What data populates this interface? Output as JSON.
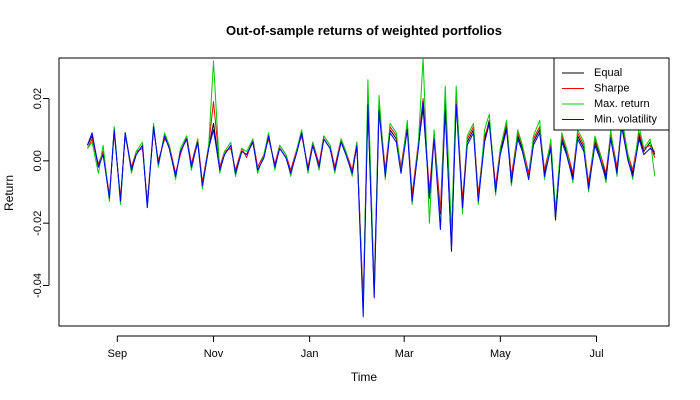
{
  "chart_data": {
    "type": "line",
    "title": "Out-of-sample returns of weighted portfolios",
    "xlabel": "Time",
    "ylabel": "Return",
    "x_ticks": [
      {
        "date": "2019-09-01",
        "label": "Sep"
      },
      {
        "date": "2019-11-01",
        "label": "Nov"
      },
      {
        "date": "2020-01-01",
        "label": "Jan"
      },
      {
        "date": "2020-03-01",
        "label": "Mar"
      },
      {
        "date": "2020-05-01",
        "label": "May"
      },
      {
        "date": "2020-07-01",
        "label": "Jul"
      }
    ],
    "y_ticks": [
      {
        "value": -0.04,
        "label": "-0.04"
      },
      {
        "value": -0.02,
        "label": "-0.02"
      },
      {
        "value": 0.0,
        "label": "0.00"
      },
      {
        "value": 0.02,
        "label": "0.02"
      }
    ],
    "xlim": [
      "2019-07-26",
      "2020-08-16"
    ],
    "ylim": [
      -0.053,
      0.033
    ],
    "grid": false,
    "legend_position": "top-right",
    "x": [
      "2019-08-13",
      "2019-08-16",
      "2019-08-20",
      "2019-08-23",
      "2019-08-27",
      "2019-08-30",
      "2019-09-03",
      "2019-09-06",
      "2019-09-10",
      "2019-09-13",
      "2019-09-17",
      "2019-09-20",
      "2019-09-24",
      "2019-09-27",
      "2019-10-01",
      "2019-10-04",
      "2019-10-08",
      "2019-10-11",
      "2019-10-15",
      "2019-10-18",
      "2019-10-22",
      "2019-10-25",
      "2019-10-29",
      "2019-11-01",
      "2019-11-05",
      "2019-11-08",
      "2019-11-12",
      "2019-11-15",
      "2019-11-19",
      "2019-11-22",
      "2019-11-26",
      "2019-11-29",
      "2019-12-03",
      "2019-12-06",
      "2019-12-10",
      "2019-12-13",
      "2019-12-17",
      "2019-12-20",
      "2019-12-24",
      "2019-12-27",
      "2019-12-31",
      "2020-01-03",
      "2020-01-07",
      "2020-01-10",
      "2020-01-14",
      "2020-01-17",
      "2020-01-21",
      "2020-01-24",
      "2020-01-28",
      "2020-01-31",
      "2020-02-04",
      "2020-02-07",
      "2020-02-11",
      "2020-02-14",
      "2020-02-18",
      "2020-02-21",
      "2020-02-25",
      "2020-02-28",
      "2020-03-03",
      "2020-03-06",
      "2020-03-10",
      "2020-03-13",
      "2020-03-17",
      "2020-03-20",
      "2020-03-24",
      "2020-03-27",
      "2020-03-31",
      "2020-04-03",
      "2020-04-07",
      "2020-04-10",
      "2020-04-14",
      "2020-04-17",
      "2020-04-21",
      "2020-04-24",
      "2020-04-28",
      "2020-05-01",
      "2020-05-05",
      "2020-05-08",
      "2020-05-12",
      "2020-05-15",
      "2020-05-19",
      "2020-05-22",
      "2020-05-26",
      "2020-05-29",
      "2020-06-02",
      "2020-06-05",
      "2020-06-09",
      "2020-06-12",
      "2020-06-16",
      "2020-06-19",
      "2020-06-23",
      "2020-06-26",
      "2020-06-30",
      "2020-07-03",
      "2020-07-07",
      "2020-07-10",
      "2020-07-14",
      "2020-07-17",
      "2020-07-21",
      "2020-07-24",
      "2020-07-28",
      "2020-07-31",
      "2020-08-04",
      "2020-08-07"
    ],
    "series": [
      {
        "name": "Equal",
        "color": "#000000",
        "values": [
          0.005,
          0.008,
          -0.002,
          0.003,
          -0.012,
          0.01,
          -0.013,
          0.009,
          -0.003,
          0.002,
          0.005,
          -0.014,
          0.011,
          -0.001,
          0.008,
          0.004,
          -0.005,
          0.003,
          0.007,
          -0.002,
          0.006,
          -0.008,
          0.004,
          0.012,
          -0.003,
          0.002,
          0.005,
          -0.004,
          0.003,
          0.002,
          0.006,
          -0.003,
          0.001,
          0.008,
          -0.002,
          0.004,
          0.001,
          -0.004,
          0.003,
          0.009,
          -0.003,
          0.005,
          -0.002,
          0.007,
          0.004,
          -0.003,
          0.006,
          0.002,
          -0.004,
          0.005,
          -0.046,
          0.018,
          -0.043,
          0.017,
          -0.004,
          0.01,
          0.007,
          -0.003,
          0.011,
          -0.012,
          0.005,
          0.017,
          -0.011,
          0.008,
          -0.017,
          0.018,
          -0.029,
          0.02,
          -0.014,
          0.006,
          0.01,
          -0.012,
          0.007,
          0.013,
          -0.009,
          0.003,
          0.011,
          -0.006,
          0.008,
          0.004,
          -0.005,
          0.006,
          0.01,
          -0.004,
          0.005,
          -0.019,
          0.007,
          0.003,
          -0.005,
          0.008,
          0.004,
          -0.008,
          0.006,
          0.002,
          -0.005,
          0.008,
          -0.003,
          0.012,
          0.001,
          -0.004,
          0.008,
          0.003,
          0.006,
          0.002
        ]
      },
      {
        "name": "Sharpe",
        "color": "#ff0000",
        "values": [
          0.004,
          0.007,
          -0.001,
          0.003,
          -0.011,
          0.009,
          -0.012,
          0.008,
          -0.002,
          0.003,
          0.004,
          -0.013,
          0.01,
          0.0,
          0.007,
          0.005,
          -0.004,
          0.002,
          0.008,
          -0.001,
          0.007,
          -0.007,
          0.005,
          0.019,
          -0.002,
          0.003,
          0.004,
          -0.003,
          0.004,
          0.001,
          0.007,
          -0.002,
          0.002,
          0.007,
          -0.001,
          0.005,
          0.002,
          -0.003,
          0.004,
          0.008,
          -0.002,
          0.006,
          -0.001,
          0.008,
          0.005,
          -0.002,
          0.007,
          0.003,
          -0.003,
          0.006,
          -0.045,
          0.019,
          -0.04,
          0.018,
          -0.003,
          0.011,
          0.008,
          -0.002,
          0.012,
          -0.011,
          0.006,
          0.02,
          -0.01,
          0.009,
          -0.016,
          0.021,
          -0.026,
          0.022,
          -0.013,
          0.007,
          0.011,
          -0.011,
          0.008,
          0.012,
          -0.008,
          0.004,
          0.012,
          -0.005,
          0.009,
          0.005,
          -0.004,
          0.007,
          0.011,
          -0.003,
          0.006,
          -0.017,
          0.008,
          0.004,
          -0.004,
          0.009,
          0.005,
          -0.007,
          0.007,
          0.003,
          -0.004,
          0.009,
          -0.002,
          0.011,
          0.002,
          -0.003,
          0.009,
          0.004,
          0.005,
          0.001
        ]
      },
      {
        "name": "Max. return",
        "color": "#00cc00",
        "values": [
          0.004,
          0.006,
          -0.004,
          0.005,
          -0.013,
          0.011,
          -0.014,
          0.009,
          -0.004,
          0.003,
          0.006,
          -0.015,
          0.012,
          -0.002,
          0.009,
          0.005,
          -0.006,
          0.004,
          0.008,
          -0.003,
          0.007,
          -0.009,
          0.005,
          0.032,
          -0.004,
          0.003,
          0.006,
          -0.005,
          0.004,
          0.003,
          0.007,
          -0.004,
          0.002,
          0.009,
          -0.003,
          0.005,
          0.002,
          -0.005,
          0.004,
          0.01,
          -0.004,
          0.006,
          -0.003,
          0.008,
          0.005,
          -0.004,
          0.007,
          0.003,
          -0.005,
          0.006,
          -0.048,
          0.026,
          -0.042,
          0.021,
          -0.006,
          0.012,
          0.009,
          -0.004,
          0.013,
          -0.014,
          0.006,
          0.033,
          -0.02,
          0.01,
          -0.022,
          0.024,
          -0.023,
          0.024,
          -0.017,
          0.008,
          0.012,
          -0.014,
          0.01,
          0.015,
          -0.011,
          0.004,
          0.013,
          -0.008,
          0.01,
          0.005,
          -0.006,
          0.008,
          0.013,
          -0.006,
          0.007,
          -0.016,
          0.009,
          0.004,
          -0.007,
          0.01,
          0.006,
          -0.01,
          0.008,
          0.003,
          -0.007,
          0.01,
          -0.005,
          0.014,
          0.002,
          -0.006,
          0.011,
          0.004,
          0.007,
          -0.005
        ]
      },
      {
        "name": "Min. volatility",
        "color": "#0000ff",
        "values": [
          0.005,
          0.009,
          -0.002,
          0.002,
          -0.012,
          0.01,
          -0.013,
          0.009,
          -0.003,
          0.002,
          0.005,
          -0.015,
          0.011,
          -0.001,
          0.008,
          0.004,
          -0.005,
          0.003,
          0.007,
          -0.002,
          0.006,
          -0.008,
          0.004,
          0.01,
          -0.003,
          0.002,
          0.005,
          -0.004,
          0.003,
          0.002,
          0.006,
          -0.003,
          0.001,
          0.008,
          -0.002,
          0.004,
          0.001,
          -0.004,
          0.003,
          0.009,
          -0.003,
          0.005,
          -0.002,
          0.007,
          0.004,
          -0.003,
          0.006,
          0.002,
          -0.004,
          0.005,
          -0.05,
          0.018,
          -0.044,
          0.016,
          -0.005,
          0.009,
          0.006,
          -0.004,
          0.01,
          -0.013,
          0.004,
          0.019,
          -0.012,
          0.007,
          -0.022,
          0.016,
          -0.028,
          0.018,
          -0.015,
          0.005,
          0.009,
          -0.013,
          0.006,
          0.012,
          -0.01,
          0.002,
          0.01,
          -0.007,
          0.007,
          0.003,
          -0.006,
          0.005,
          0.009,
          -0.005,
          0.004,
          -0.018,
          0.006,
          0.002,
          -0.006,
          0.007,
          0.003,
          -0.009,
          0.005,
          0.001,
          -0.006,
          0.007,
          -0.004,
          0.011,
          0.0,
          -0.005,
          0.007,
          0.002,
          0.004,
          0.003
        ]
      }
    ]
  }
}
